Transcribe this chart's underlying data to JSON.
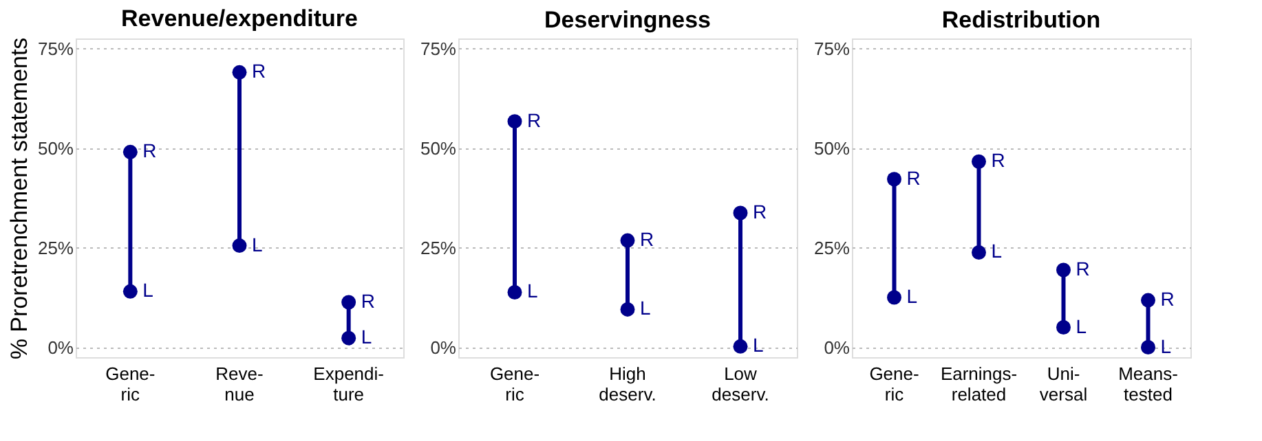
{
  "chart_data": [
    {
      "type": "scatter",
      "title": "Revenue/expenditure",
      "ylabel": "% Proretrenchment statements",
      "categories": [
        "Gene-\nric",
        "Reve-\nnue",
        "Expendi-\nture"
      ],
      "ylim": [
        -2.5,
        77.5
      ],
      "yticks": [
        {
          "value": 0,
          "label": "0%"
        },
        {
          "value": 25,
          "label": "25%"
        },
        {
          "value": 50,
          "label": "50%"
        },
        {
          "value": 75,
          "label": "75%"
        }
      ],
      "grid": "y",
      "marker": "circle",
      "series": [
        {
          "name": "L",
          "color": "#00008b",
          "values": [
            14,
            25.5,
            2.3
          ]
        },
        {
          "name": "R",
          "color": "#00008b",
          "values": [
            49,
            69,
            11.3
          ]
        }
      ]
    },
    {
      "type": "scatter",
      "title": "Deservingness",
      "categories": [
        "Gene-\nric",
        "High\ndeserv.",
        "Low\ndeserv."
      ],
      "ylim": [
        -2.5,
        77.5
      ],
      "yticks": [
        {
          "value": 0,
          "label": "0%"
        },
        {
          "value": 25,
          "label": "25%"
        },
        {
          "value": 50,
          "label": "50%"
        },
        {
          "value": 75,
          "label": "75%"
        }
      ],
      "grid": "y",
      "marker": "circle",
      "series": [
        {
          "name": "L",
          "color": "#00008b",
          "values": [
            13.8,
            9.5,
            0.2
          ]
        },
        {
          "name": "R",
          "color": "#00008b",
          "values": [
            56.7,
            26.8,
            33.7
          ]
        }
      ]
    },
    {
      "type": "scatter",
      "title": "Redistribution",
      "categories": [
        "Gene-\nric",
        "Earnings-\nrelated",
        "Uni-\nversal",
        "Means-\ntested"
      ],
      "ylim": [
        -2.5,
        77.5
      ],
      "yticks": [
        {
          "value": 0,
          "label": "0%"
        },
        {
          "value": 25,
          "label": "25%"
        },
        {
          "value": 50,
          "label": "50%"
        },
        {
          "value": 75,
          "label": "75%"
        }
      ],
      "grid": "y",
      "marker": "circle",
      "series": [
        {
          "name": "L",
          "color": "#00008b",
          "values": [
            12.5,
            23.8,
            5.0,
            0
          ]
        },
        {
          "name": "R",
          "color": "#00008b",
          "values": [
            42.2,
            46.6,
            19.4,
            11.8
          ]
        }
      ]
    }
  ]
}
